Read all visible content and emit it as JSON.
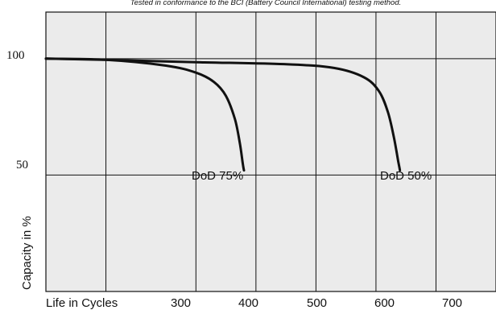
{
  "chart_data": {
    "type": "line",
    "note": "Tested in conformance to the BCI (Battery Council International) testing method.",
    "xlabel": "Life in Cycles",
    "ylabel": "Capacity in %",
    "xlim": [
      50,
      800
    ],
    "ylim": [
      0,
      120
    ],
    "x_ticks": [
      300,
      400,
      500,
      600,
      700
    ],
    "y_ticks": [
      50,
      100
    ],
    "grid": true,
    "series": [
      {
        "name": "DoD 75%",
        "points": [
          [
            50,
            100
          ],
          [
            150,
            99.5
          ],
          [
            250,
            97
          ],
          [
            300,
            94
          ],
          [
            330,
            90
          ],
          [
            350,
            84
          ],
          [
            365,
            74
          ],
          [
            373,
            64
          ],
          [
            378,
            55
          ],
          [
            380,
            52
          ]
        ]
      },
      {
        "name": "DoD 50%",
        "points": [
          [
            50,
            100
          ],
          [
            150,
            99.5
          ],
          [
            300,
            98.5
          ],
          [
            450,
            97.6
          ],
          [
            530,
            96
          ],
          [
            580,
            92
          ],
          [
            605,
            86
          ],
          [
            620,
            77
          ],
          [
            630,
            66
          ],
          [
            637,
            56
          ],
          [
            640,
            52
          ]
        ]
      }
    ],
    "colors": {
      "line": "#111111",
      "plot_bg": "#ebebeb",
      "grid": "#111111"
    }
  }
}
